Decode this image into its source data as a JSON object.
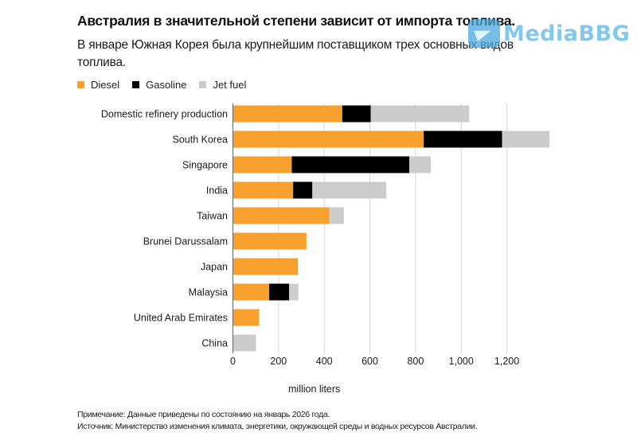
{
  "header": {
    "title": "Австралия в значительной степени зависит от импорта топлива.",
    "subtitle": "В январе Южная Корея была крупнейшим поставщиком трех основных видов топлива."
  },
  "watermark": {
    "text": "MediaBBG",
    "icon": "telegram-icon"
  },
  "footer": {
    "note": "Примечание: Данные приведены по состоянию на январь 2026 года.",
    "source": "Источник: Министерство изменения климата, энергетики, окружающей среды и водных ресурсов Австралии."
  },
  "chart_data": {
    "type": "bar",
    "orientation": "horizontal",
    "stacked": true,
    "title": "Австралия в значительной степени зависит от импорта топлива.",
    "subtitle": "В январе Южная Корея была крупнейшим поставщиком трех основных видов топлива.",
    "xlabel": "million liters",
    "ylabel": "",
    "xlim": [
      0,
      1400
    ],
    "xticks": [
      0,
      200,
      400,
      600,
      800,
      1000,
      1200
    ],
    "xtick_labels": [
      "0",
      "200",
      "400",
      "600",
      "800",
      "1,000",
      "1,200"
    ],
    "grid": true,
    "legend_position": "top-left",
    "categories": [
      "Domestic refinery production",
      "South Korea",
      "Singapore",
      "India",
      "Taiwan",
      "Brunei Darussalam",
      "Japan",
      "Malaysia",
      "United Arab Emirates",
      "China"
    ],
    "series": [
      {
        "name": "Diesel",
        "color": "#f7a02d",
        "values": [
          479,
          836,
          258,
          264,
          423,
          322,
          285,
          159,
          115,
          0
        ]
      },
      {
        "name": "Gasoline",
        "color": "#000000",
        "values": [
          125,
          343,
          515,
          84,
          0,
          0,
          0,
          87,
          0,
          0
        ]
      },
      {
        "name": "Jet fuel",
        "color": "#cccccc",
        "values": [
          431,
          208,
          94,
          324,
          63,
          0,
          0,
          41,
          0,
          101
        ]
      }
    ]
  }
}
